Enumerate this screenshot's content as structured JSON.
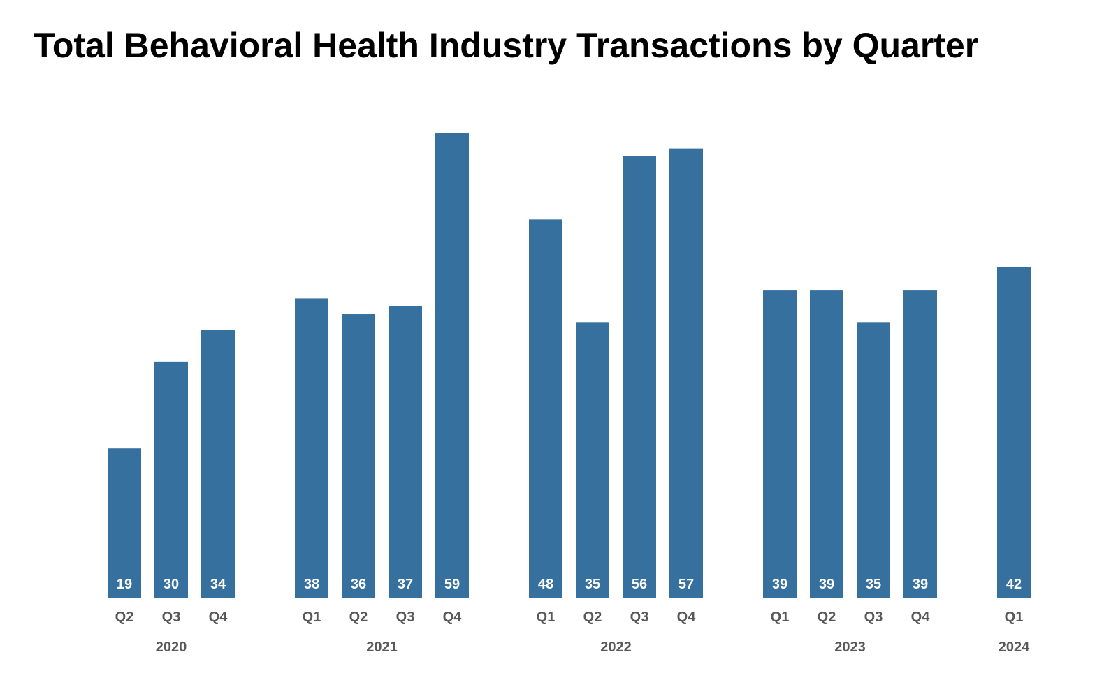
{
  "chart_data": {
    "type": "bar",
    "title": "Total Behavioral Health Industry Transactions by Quarter",
    "xlabel": "",
    "ylabel": "",
    "ylim": [
      0,
      59
    ],
    "grid": false,
    "legend": "none",
    "bar_color": "#36709f",
    "value_label_color": "#ffffff",
    "axis_label_color": "#595959",
    "groups": [
      {
        "year": "2020",
        "quarters": [
          "Q2",
          "Q3",
          "Q4"
        ],
        "values": [
          19,
          30,
          34
        ]
      },
      {
        "year": "2021",
        "quarters": [
          "Q1",
          "Q2",
          "Q3",
          "Q4"
        ],
        "values": [
          38,
          36,
          37,
          59
        ]
      },
      {
        "year": "2022",
        "quarters": [
          "Q1",
          "Q2",
          "Q3",
          "Q4"
        ],
        "values": [
          48,
          35,
          56,
          57
        ]
      },
      {
        "year": "2023",
        "quarters": [
          "Q1",
          "Q2",
          "Q3",
          "Q4"
        ],
        "values": [
          39,
          39,
          35,
          39
        ]
      },
      {
        "year": "2024",
        "quarters": [
          "Q1"
        ],
        "values": [
          42
        ]
      }
    ]
  }
}
